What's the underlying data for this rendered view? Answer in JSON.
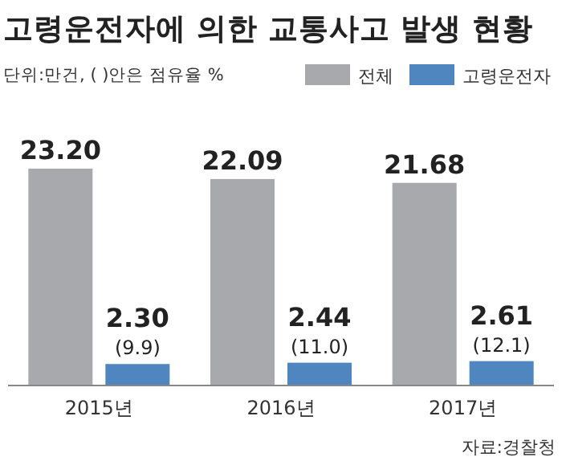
{
  "chart_data": {
    "type": "bar",
    "title": "고령운전자에 의한 교통사고 발생 현황",
    "subtitle": "단위:만건, ( )안은 점유율 %",
    "categories": [
      "2015년",
      "2016년",
      "2017년"
    ],
    "series": [
      {
        "name": "전체",
        "color": "#a7a9ac",
        "values": [
          23.2,
          22.09,
          21.68
        ],
        "value_labels": [
          "23.20",
          "22.09",
          "21.68"
        ]
      },
      {
        "name": "고령운전자",
        "color": "#4f86bf",
        "values": [
          2.3,
          2.44,
          2.61
        ],
        "value_labels": [
          "2.30\n(9.9)",
          "2.44\n(11.0)",
          "2.61\n(12.1)"
        ]
      }
    ],
    "legend": "top right",
    "annotations": [
      "자료:경찰청"
    ]
  }
}
